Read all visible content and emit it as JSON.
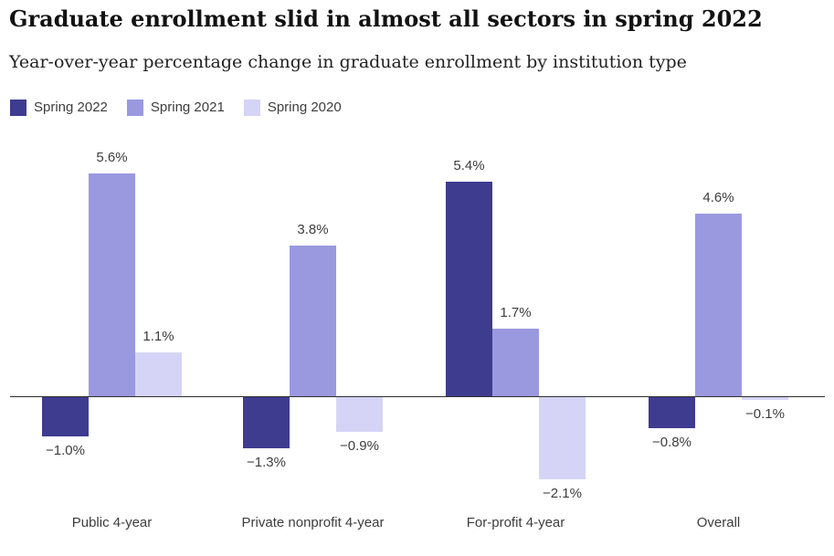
{
  "chart_data": {
    "type": "bar",
    "title": "Graduate enrollment slid in almost all sectors in spring 2022",
    "subtitle": "Year-over-year percentage change in graduate enrollment by institution type",
    "categories": [
      "Public 4-year",
      "Private nonprofit 4-year",
      "For-profit 4-year",
      "Overall"
    ],
    "series": [
      {
        "name": "Spring 2022",
        "color": "#3e3c8f",
        "values": [
          -1.0,
          -1.3,
          5.4,
          -0.8
        ],
        "labels": [
          "−1.0%",
          "−1.3%",
          "5.4%",
          "−0.8%"
        ]
      },
      {
        "name": "Spring 2021",
        "color": "#9a99e0",
        "values": [
          5.6,
          3.8,
          1.7,
          4.6
        ],
        "labels": [
          "5.6%",
          "3.8%",
          "1.7%",
          "4.6%"
        ]
      },
      {
        "name": "Spring 2020",
        "color": "#d5d4f6",
        "values": [
          1.1,
          -0.9,
          -2.1,
          -0.1
        ],
        "labels": [
          "1.1%",
          "−0.9%",
          "−2.1%",
          "−0.1%"
        ]
      }
    ],
    "xlabel": "",
    "ylabel": "",
    "ylim": [
      -2.6,
      6.2
    ],
    "grid": false,
    "axis_baseline": 0,
    "legend_position": "top-left",
    "value_labels_shown": true,
    "colors": {
      "title_text": "#121212",
      "subtitle_text": "#222222",
      "label_text": "#3d3d3d",
      "axis_line": "#2e2e2e",
      "background": "#ffffff"
    }
  }
}
